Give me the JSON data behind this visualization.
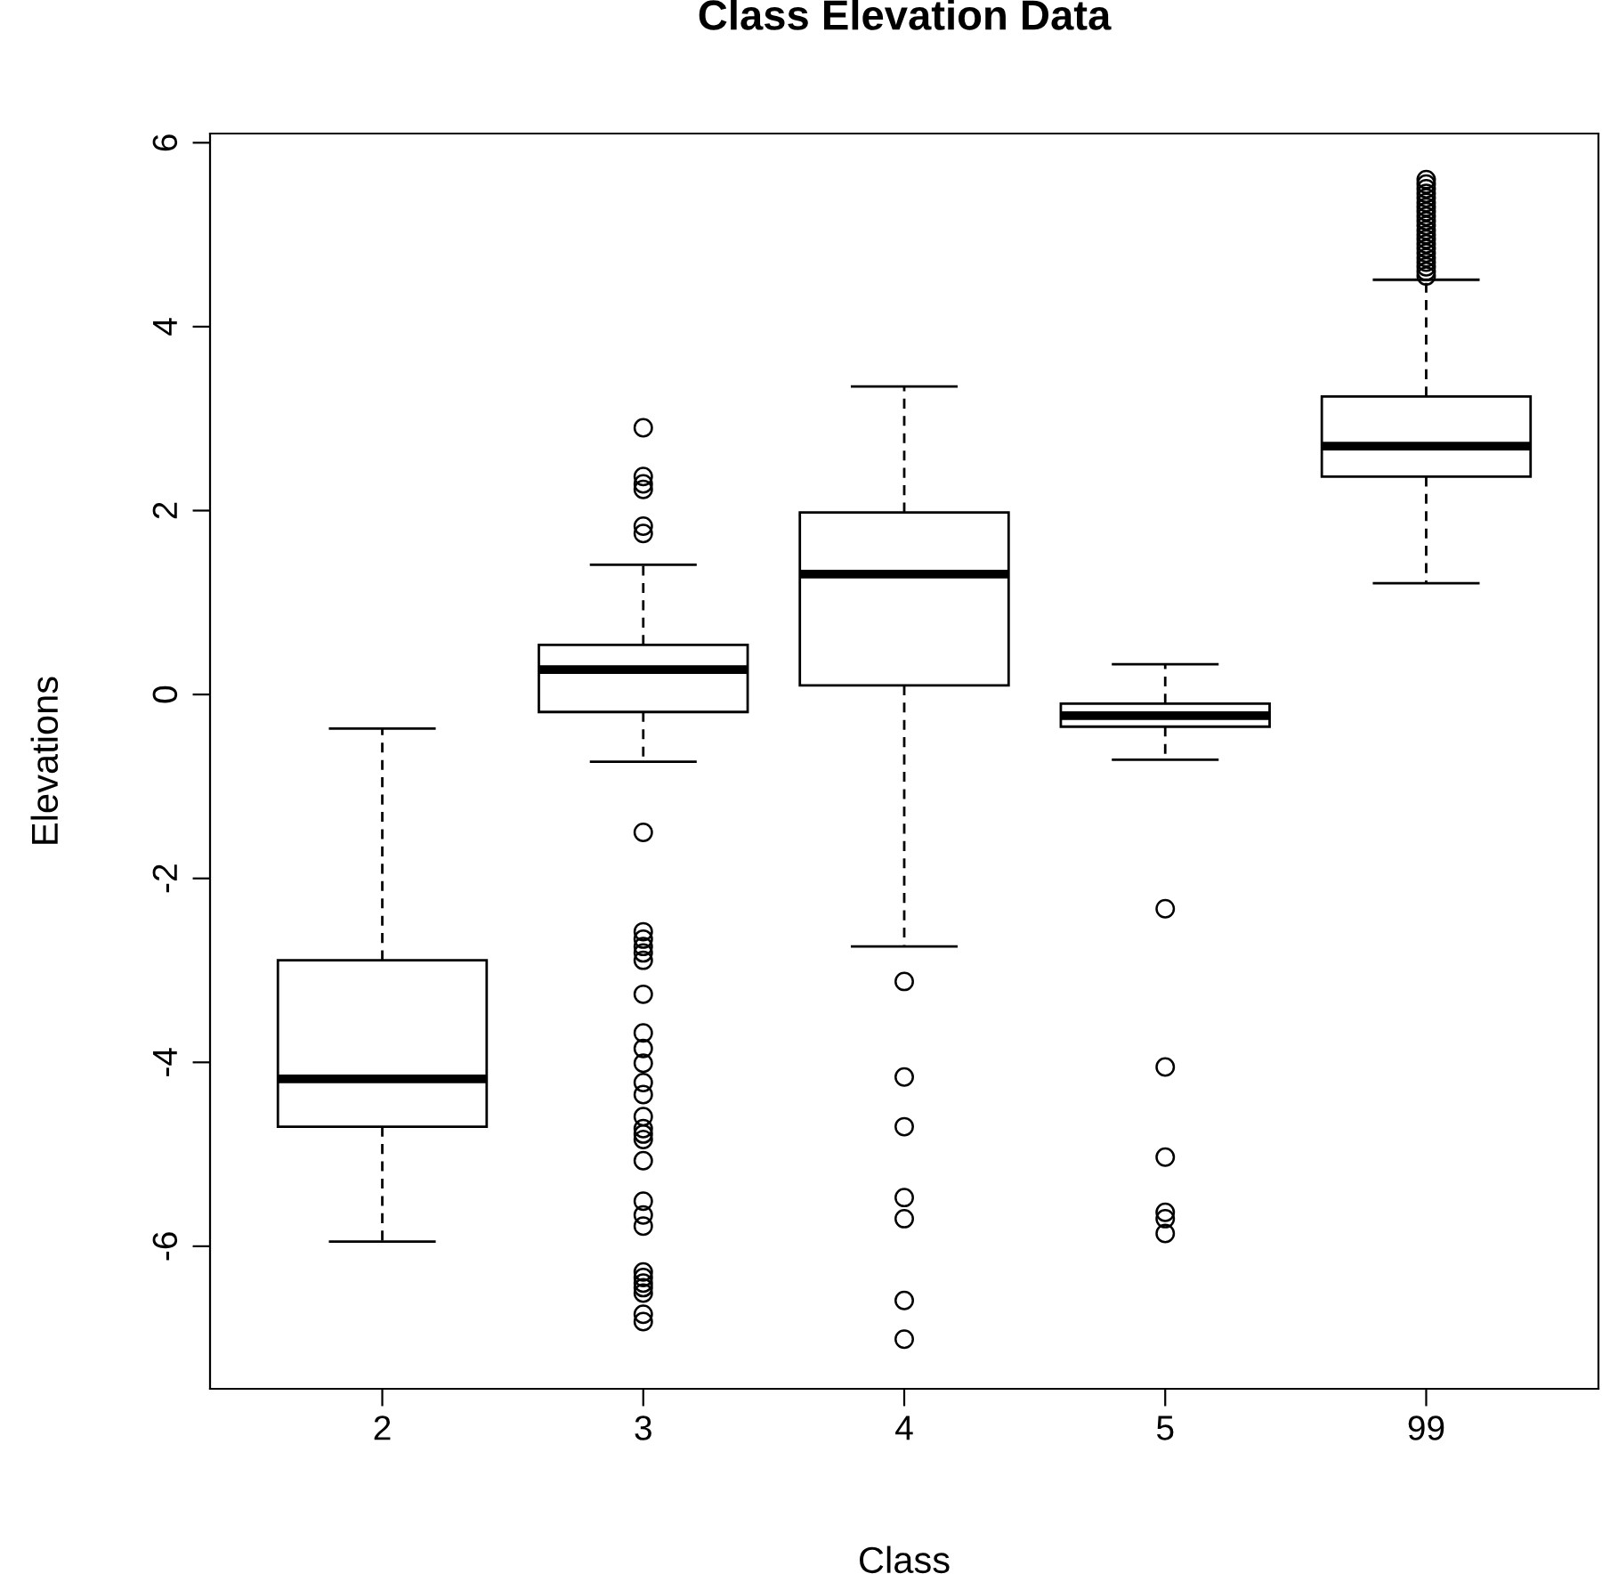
{
  "chart_data": {
    "type": "box",
    "title": "Class Elevation Data",
    "xlabel": "Class",
    "ylabel": "Elevations",
    "categories": [
      "2",
      "3",
      "4",
      "5",
      "99"
    ],
    "ylim": [
      -7.55,
      6.1
    ],
    "yticks": [
      -6,
      -4,
      -2,
      0,
      2,
      4,
      6
    ],
    "grid": false,
    "marker": "circle",
    "line_style": "dashed",
    "boxes": [
      {
        "low": -5.95,
        "q1": -4.7,
        "median": -4.18,
        "q3": -2.89,
        "high": -0.37
      },
      {
        "low": -0.73,
        "q1": -0.19,
        "median": 0.27,
        "q3": 0.54,
        "high": 1.41,
        "outliers": [
          2.9,
          2.37,
          2.29,
          2.23,
          1.83,
          1.75,
          -1.5,
          -2.58,
          -2.66,
          -2.74,
          -2.81,
          -2.89,
          -3.26,
          -3.68,
          -3.85,
          -4.01,
          -4.22,
          -4.35,
          -4.59,
          -4.72,
          -4.78,
          -4.84,
          -5.07,
          -5.51,
          -5.66,
          -5.78,
          -6.28,
          -6.34,
          -6.4,
          -6.45,
          -6.51,
          -6.74,
          -6.82
        ]
      },
      {
        "low": -2.74,
        "q1": 0.1,
        "median": 1.31,
        "q3": 1.98,
        "high": 3.35,
        "outliers": [
          -3.12,
          -4.16,
          -4.7,
          -5.47,
          -5.7,
          -6.59,
          -7.01
        ]
      },
      {
        "low": -0.71,
        "q1": -0.35,
        "median": -0.23,
        "q3": -0.1,
        "high": 0.33,
        "outliers": [
          -2.33,
          -4.05,
          -5.03,
          -5.63,
          -5.7,
          -5.86
        ]
      },
      {
        "low": 1.21,
        "q1": 2.37,
        "median": 2.7,
        "q3": 3.24,
        "high": 4.51,
        "outliers": [
          4.55,
          4.6,
          4.65,
          4.7,
          4.75,
          4.8,
          4.85,
          4.9,
          4.95,
          5.0,
          5.05,
          5.1,
          5.15,
          5.2,
          5.25,
          5.3,
          5.35,
          5.4,
          5.45,
          5.5,
          5.55,
          5.6
        ]
      }
    ]
  }
}
